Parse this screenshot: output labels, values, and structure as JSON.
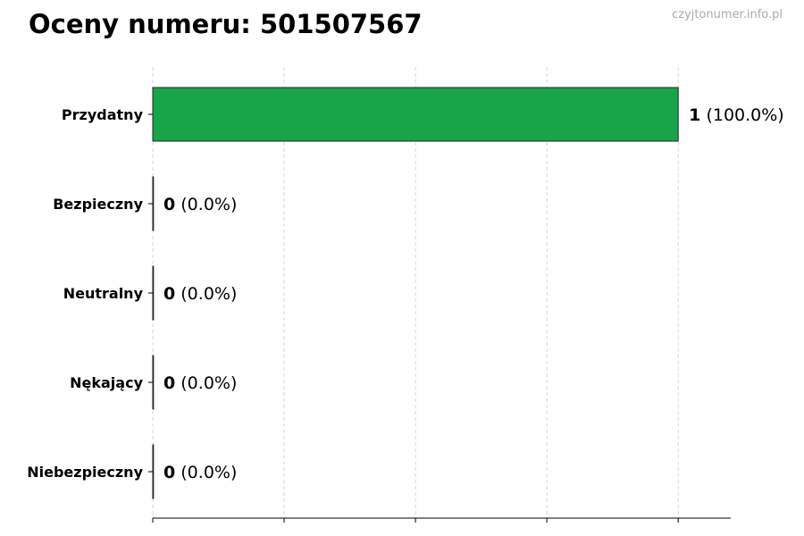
{
  "chart_data": {
    "type": "bar",
    "orientation": "horizontal",
    "title": "Oceny numeru: 501507567",
    "watermark": "czyjtonumer.info.pl",
    "categories": [
      "Przydatny",
      "Bezpieczny",
      "Neutralny",
      "Nękający",
      "Niebezpieczny"
    ],
    "values": [
      1,
      0,
      0,
      0,
      0
    ],
    "labels": [
      {
        "count": "1",
        "pct": "(100.0%)"
      },
      {
        "count": "0",
        "pct": "(0.0%)"
      },
      {
        "count": "0",
        "pct": "(0.0%)"
      },
      {
        "count": "0",
        "pct": "(0.0%)"
      },
      {
        "count": "0",
        "pct": "(0.0%)"
      }
    ],
    "xlim": [
      0,
      1.1
    ],
    "xticks": [
      0,
      0.25,
      0.5,
      0.75,
      1.0
    ],
    "xtick_labels_visible": false,
    "grid": "x-dashed",
    "bar_color": "#18a54a",
    "xlabel": "",
    "ylabel": ""
  }
}
